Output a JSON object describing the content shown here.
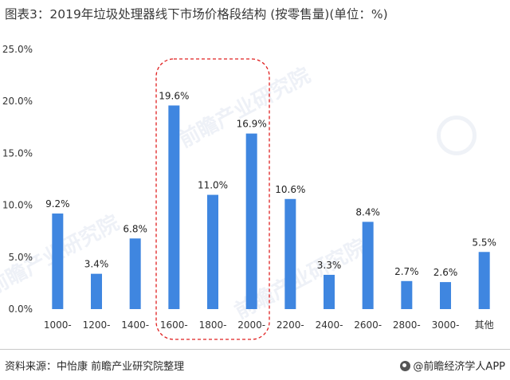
{
  "chart_data": {
    "type": "bar",
    "title": "图表3：2019年垃圾处理器线下市场价格段结构 (按零售量)(单位：%)",
    "categories": [
      "1000-",
      "1200-",
      "1400-",
      "1600-",
      "1800-",
      "2000-",
      "2200-",
      "2400-",
      "2600-",
      "2800-",
      "3000-",
      "其他"
    ],
    "values": [
      9.2,
      3.4,
      6.8,
      19.6,
      11.0,
      16.9,
      10.6,
      3.3,
      8.4,
      2.7,
      2.6,
      5.5
    ],
    "data_labels": [
      "9.2%",
      "3.4%",
      "6.8%",
      "19.6%",
      "11.0%",
      "16.9%",
      "10.6%",
      "3.3%",
      "8.4%",
      "2.7%",
      "2.6%",
      "5.5%"
    ],
    "y_ticks": [
      0,
      5,
      10,
      15,
      20,
      25
    ],
    "y_tick_labels": [
      "0.0%",
      "5.0%",
      "10.0%",
      "15.0%",
      "20.0%",
      "25.0%"
    ],
    "ylim": [
      0,
      25
    ],
    "xlabel": "",
    "ylabel": "",
    "grid": false,
    "bar_color": "#3f86e0",
    "highlight_categories": [
      "1600-",
      "1800-",
      "2000-"
    ],
    "highlight_color": "#e02020"
  },
  "footer": {
    "source": "资料来源：中怡康 前瞻产业研究院整理",
    "brand": "@前瞻经济学人APP"
  },
  "watermark": {
    "text": "前瞻产业研究院"
  }
}
